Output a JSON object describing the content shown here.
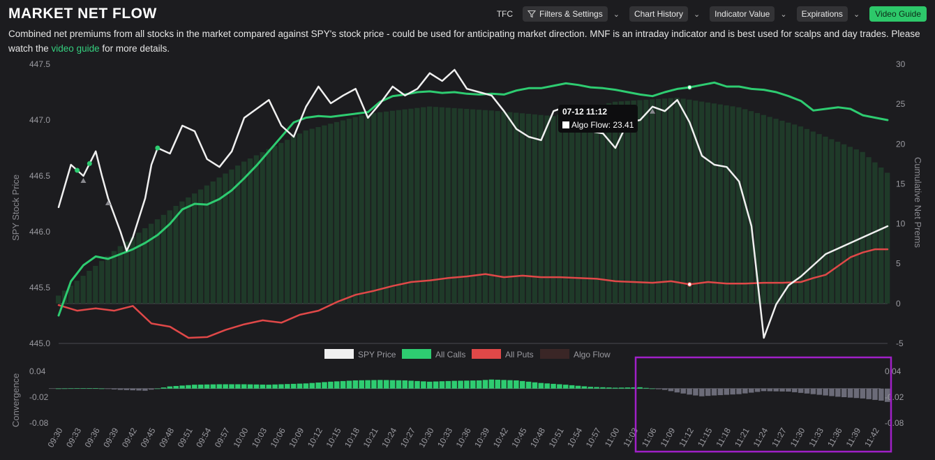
{
  "header": {
    "title": "MARKET NET FLOW",
    "description_pre": "Combined net premiums from all stocks in the market compared against SPY's stock price - could be used for anticipating market direction. MNF is an intraday indicator and is best used for scalps and day trades. Please watch the ",
    "description_link": "video guide",
    "description_post": " for more details."
  },
  "toolbar": {
    "ticker": "TFC",
    "filters_label": "Filters & Settings",
    "chart_history_label": "Chart History",
    "indicator_value_label": "Indicator Value",
    "expirations_label": "Expirations",
    "video_guide_label": "Video Guide"
  },
  "tooltip": {
    "title": "07-12 11:12",
    "label": "Algo Flow: 23.41"
  },
  "legend": [
    "SPY Price",
    "All Calls",
    "All Puts",
    "Algo Flow"
  ],
  "colors": {
    "spy": "#f0f0f0",
    "calls": "#2ecc71",
    "puts": "#e04848",
    "algo": "#1f3a29",
    "conv_pos": "#2ecc71",
    "conv_neg": "#6b6b78",
    "highlight": "#a020c8"
  },
  "chart_data": [
    {
      "type": "line",
      "title": "",
      "ylabel_left": "SPY Stock Price",
      "ylabel_right": "Cumulative Net Prems",
      "yleft_ticks": [
        "447.5",
        "447.0",
        "446.5",
        "446.0",
        "445.5",
        "445.0"
      ],
      "yright_ticks": [
        "30",
        "25",
        "20",
        "15",
        "10",
        "5",
        "0",
        "-5"
      ],
      "yleft_range": [
        445.0,
        447.5
      ],
      "yright_range": [
        -5,
        30
      ],
      "time_start": "09:30",
      "time_end": "11:44",
      "series": [
        {
          "name": "SPY Price",
          "axis": "left",
          "t": [
            0,
            2,
            4,
            6,
            7,
            8,
            10,
            11,
            12,
            14,
            15,
            16,
            18,
            20,
            22,
            24,
            26,
            28,
            30,
            32,
            34,
            36,
            38,
            40,
            42,
            44,
            46,
            48,
            50,
            52,
            54,
            56,
            58,
            60,
            62,
            64,
            66,
            68,
            70,
            72,
            74,
            76,
            78,
            80,
            82,
            84,
            86,
            88,
            90,
            92,
            94,
            96,
            98,
            100,
            102,
            104,
            106,
            108,
            110,
            112,
            114,
            116,
            118,
            120,
            122,
            124,
            126,
            128,
            130,
            132,
            134
          ],
          "values": [
            446.22,
            446.6,
            446.5,
            446.72,
            446.5,
            446.3,
            446.0,
            445.83,
            445.95,
            446.3,
            446.6,
            446.75,
            446.7,
            446.95,
            446.9,
            446.65,
            446.58,
            446.72,
            447.02,
            447.1,
            447.18,
            446.95,
            446.85,
            447.12,
            447.3,
            447.15,
            447.22,
            447.28,
            447.02,
            447.15,
            447.3,
            447.22,
            447.28,
            447.42,
            447.35,
            447.45,
            447.28,
            447.25,
            447.22,
            447.08,
            446.92,
            446.85,
            446.82,
            447.08,
            447.12,
            447.02,
            446.9,
            446.88,
            446.75,
            446.98,
            447.0,
            447.12,
            447.08,
            447.18,
            446.98,
            446.68,
            446.6,
            446.58,
            446.45,
            446.05,
            445.05,
            445.35,
            445.52,
            445.6,
            445.7,
            445.8,
            445.85,
            445.9,
            445.95,
            446.0,
            446.05
          ]
        },
        {
          "name": "All Calls",
          "axis": "right",
          "t": [
            0,
            2,
            4,
            6,
            8,
            10,
            12,
            14,
            16,
            18,
            20,
            22,
            24,
            26,
            28,
            30,
            32,
            34,
            36,
            38,
            40,
            42,
            44,
            46,
            48,
            50,
            52,
            54,
            56,
            58,
            60,
            62,
            64,
            66,
            68,
            70,
            72,
            74,
            76,
            78,
            80,
            82,
            84,
            86,
            88,
            90,
            92,
            94,
            96,
            98,
            100,
            102,
            104,
            106,
            108,
            110,
            112,
            114,
            116,
            118,
            120,
            122,
            124,
            126,
            128,
            130,
            132,
            134
          ],
          "values": [
            -1.5,
            2.8,
            4.8,
            5.9,
            5.6,
            6.2,
            6.8,
            7.6,
            8.6,
            10.0,
            11.8,
            12.5,
            12.4,
            13.1,
            14.2,
            15.7,
            17.3,
            19.1,
            20.9,
            22.7,
            23.3,
            23.5,
            23.4,
            23.6,
            23.8,
            24.0,
            25.3,
            26.0,
            26.2,
            26.5,
            26.6,
            26.4,
            26.5,
            26.3,
            26.2,
            26.3,
            26.2,
            26.7,
            27.0,
            27.0,
            27.3,
            27.6,
            27.4,
            27.1,
            27.0,
            26.8,
            26.5,
            26.2,
            26.0,
            26.5,
            26.9,
            27.1,
            27.4,
            27.7,
            27.2,
            27.2,
            26.9,
            26.8,
            26.5,
            26.0,
            25.4,
            24.2,
            24.4,
            24.6,
            24.4,
            23.6,
            23.3,
            23.0
          ]
        },
        {
          "name": "All Puts",
          "axis": "right",
          "t": [
            0,
            3,
            6,
            9,
            12,
            15,
            18,
            21,
            24,
            27,
            30,
            33,
            36,
            39,
            42,
            45,
            48,
            51,
            54,
            57,
            60,
            63,
            66,
            69,
            72,
            75,
            78,
            81,
            84,
            87,
            90,
            93,
            96,
            99,
            102,
            105,
            108,
            111,
            114,
            117,
            120,
            122,
            124,
            126,
            128,
            130,
            132,
            134
          ],
          "values": [
            -0.2,
            -0.9,
            -0.6,
            -0.9,
            -0.3,
            -2.5,
            -2.9,
            -4.3,
            -4.2,
            -3.3,
            -2.6,
            -2.1,
            -2.4,
            -1.4,
            -0.9,
            0.2,
            1.1,
            1.6,
            2.2,
            2.7,
            2.9,
            3.2,
            3.4,
            3.7,
            3.3,
            3.5,
            3.3,
            3.3,
            3.2,
            3.1,
            2.8,
            2.7,
            2.6,
            2.8,
            2.4,
            2.7,
            2.5,
            2.5,
            2.6,
            2.6,
            2.7,
            3.2,
            3.6,
            4.7,
            5.8,
            6.4,
            6.8,
            6.8
          ]
        },
        {
          "name": "Algo Flow",
          "axis": "right",
          "type": "bar",
          "t": [
            0,
            10,
            20,
            30,
            40,
            50,
            60,
            70,
            80,
            90,
            100,
            110,
            120,
            130,
            134
          ],
          "values": [
            1.0,
            7.2,
            12.8,
            17.8,
            21.7,
            23.8,
            24.7,
            24.2,
            23.5,
            25.3,
            25.8,
            24.6,
            22.2,
            19.0,
            16.4
          ]
        }
      ]
    },
    {
      "type": "bar",
      "title": "",
      "ylabel": "Convergence",
      "y_ticks": [
        "0.04",
        "-0.02",
        "-0.08"
      ],
      "y_range": [
        -0.08,
        0.04
      ],
      "x_ticks": [
        "09:30",
        "09:33",
        "09:36",
        "09:39",
        "09:42",
        "09:45",
        "09:48",
        "09:51",
        "09:54",
        "09:57",
        "10:00",
        "10:03",
        "10:06",
        "10:09",
        "10:12",
        "10:15",
        "10:18",
        "10:21",
        "10:24",
        "10:27",
        "10:30",
        "10:33",
        "10:36",
        "10:39",
        "10:42",
        "10:45",
        "10:48",
        "10:51",
        "10:54",
        "10:57",
        "11:00",
        "11:03",
        "11:06",
        "11:09",
        "11:12",
        "11:15",
        "11:18",
        "11:21",
        "11:24",
        "11:27",
        "11:30",
        "11:33",
        "11:36",
        "11:39",
        "11:42"
      ],
      "series": [
        {
          "name": "Convergence",
          "t": [
            0,
            6,
            10,
            14,
            18,
            22,
            26,
            30,
            34,
            40,
            44,
            48,
            52,
            56,
            60,
            64,
            68,
            70,
            74,
            78,
            82,
            86,
            90,
            94,
            96,
            98,
            100,
            102,
            104,
            106,
            110,
            114,
            118,
            122,
            126,
            130,
            133,
            134
          ],
          "values": [
            0.0,
            0.001,
            -0.003,
            -0.005,
            0.005,
            0.009,
            0.01,
            0.01,
            0.009,
            0.012,
            0.016,
            0.019,
            0.02,
            0.019,
            0.016,
            0.018,
            0.019,
            0.021,
            0.019,
            0.013,
            0.009,
            0.004,
            0.002,
            0.003,
            0.0,
            -0.003,
            -0.009,
            -0.014,
            -0.018,
            -0.016,
            -0.013,
            -0.006,
            -0.007,
            -0.013,
            -0.019,
            -0.023,
            -0.028,
            -0.031
          ]
        }
      ]
    }
  ]
}
